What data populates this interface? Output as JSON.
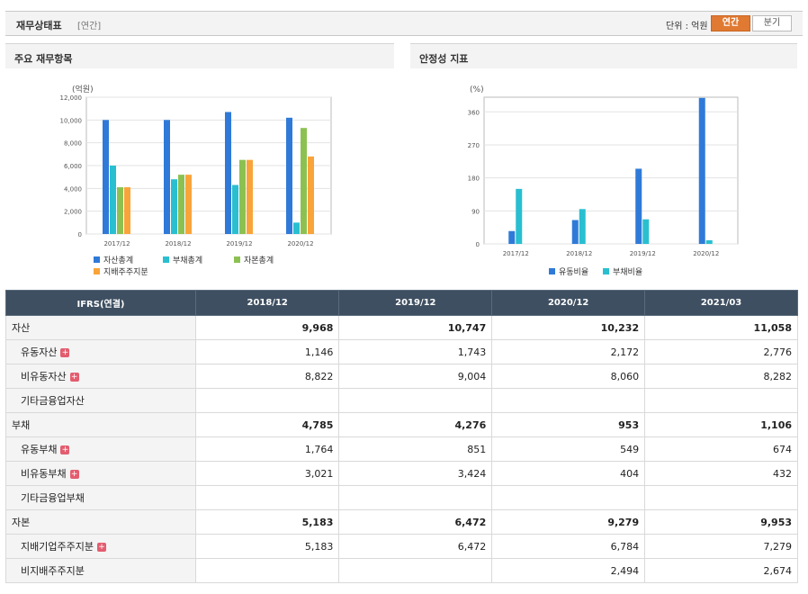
{
  "header": {
    "title": "재무상태표",
    "subtitle": "[연간]",
    "unit": "단위 : 억원",
    "btn_annual": "연간",
    "btn_quarter": "분기"
  },
  "left_panel": {
    "title": "주요 재무항목"
  },
  "right_panel": {
    "title": "안정성 지표"
  },
  "chart_data": [
    {
      "type": "bar",
      "ylabel": "(억원)",
      "categories": [
        "2017/12",
        "2018/12",
        "2019/12",
        "2020/12"
      ],
      "ylim": [
        0,
        12000
      ],
      "yticks": [
        0,
        2000,
        4000,
        6000,
        8000,
        10000,
        12000
      ],
      "ytick_labels": [
        "0",
        "2,000",
        "4,000",
        "6,000",
        "8,000",
        "10,000",
        "12,000"
      ],
      "series": [
        {
          "name": "자산총계",
          "color": "#2f7ad8",
          "values": [
            10000,
            10000,
            10700,
            10200
          ]
        },
        {
          "name": "부채총계",
          "color": "#29bfd0",
          "values": [
            6000,
            4800,
            4300,
            1000
          ]
        },
        {
          "name": "자본총계",
          "color": "#8cc152",
          "values": [
            4100,
            5200,
            6500,
            9300
          ]
        },
        {
          "name": "지배주주지분",
          "color": "#f9a43a",
          "values": [
            4100,
            5200,
            6500,
            6800
          ]
        }
      ],
      "legend": "bottom"
    },
    {
      "type": "bar",
      "ylabel": "(%)",
      "categories": [
        "2017/12",
        "2018/12",
        "2019/12",
        "2020/12"
      ],
      "ylim": [
        0,
        400
      ],
      "yticks": [
        0,
        90,
        180,
        270,
        360
      ],
      "ytick_labels": [
        "0",
        "90",
        "180",
        "270",
        "360"
      ],
      "series": [
        {
          "name": "유동비율",
          "color": "#2f7ad8",
          "values": [
            35,
            65,
            205,
            398
          ]
        },
        {
          "name": "부채비율",
          "color": "#29bfd0",
          "values": [
            150,
            95,
            67,
            10
          ]
        }
      ],
      "legend": "bottom"
    }
  ],
  "table": {
    "header": [
      "IFRS(연결)",
      "2018/12",
      "2019/12",
      "2020/12",
      "2021/03"
    ],
    "rows": [
      {
        "label": "자산",
        "child": false,
        "plus": false,
        "bold": true,
        "values": [
          "9,968",
          "10,747",
          "10,232",
          "11,058"
        ]
      },
      {
        "label": "유동자산",
        "child": true,
        "plus": true,
        "bold": false,
        "values": [
          "1,146",
          "1,743",
          "2,172",
          "2,776"
        ]
      },
      {
        "label": "비유동자산",
        "child": true,
        "plus": true,
        "bold": false,
        "values": [
          "8,822",
          "9,004",
          "8,060",
          "8,282"
        ]
      },
      {
        "label": "기타금융업자산",
        "child": true,
        "plus": false,
        "bold": false,
        "values": [
          "",
          "",
          "",
          ""
        ]
      },
      {
        "label": "부채",
        "child": false,
        "plus": false,
        "bold": true,
        "values": [
          "4,785",
          "4,276",
          "953",
          "1,106"
        ]
      },
      {
        "label": "유동부채",
        "child": true,
        "plus": true,
        "bold": false,
        "values": [
          "1,764",
          "851",
          "549",
          "674"
        ]
      },
      {
        "label": "비유동부채",
        "child": true,
        "plus": true,
        "bold": false,
        "values": [
          "3,021",
          "3,424",
          "404",
          "432"
        ]
      },
      {
        "label": "기타금융업부채",
        "child": true,
        "plus": false,
        "bold": false,
        "values": [
          "",
          "",
          "",
          ""
        ]
      },
      {
        "label": "자본",
        "child": false,
        "plus": false,
        "bold": true,
        "values": [
          "5,183",
          "6,472",
          "9,279",
          "9,953"
        ]
      },
      {
        "label": "지배기업주주지분",
        "child": true,
        "plus": true,
        "bold": false,
        "values": [
          "5,183",
          "6,472",
          "6,784",
          "7,279"
        ]
      },
      {
        "label": "비지배주주지분",
        "child": true,
        "plus": false,
        "bold": false,
        "values": [
          "",
          "",
          "2,494",
          "2,674"
        ]
      }
    ]
  }
}
